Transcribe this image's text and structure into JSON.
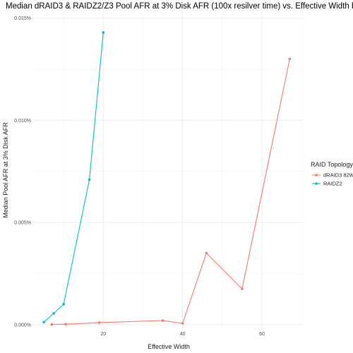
{
  "chart_data": {
    "type": "line",
    "title": "Median dRAID3 & RAIDZ2/Z3 Pool AFR at 3% Disk AFR  (100x resilver time) vs. Effective Width by RAID Topology",
    "xlabel": "Effective Width",
    "ylabel": "Median Pool AFR at 3% Disk AFR",
    "xlim": [
      2.5,
      70.5
    ],
    "ylim": [
      -0.00018,
      0.0153
    ],
    "x_ticks": [
      20,
      40,
      60
    ],
    "x_minor_ticks": [
      10,
      30,
      50,
      70
    ],
    "y_ticks": [
      0,
      0.005,
      0.01,
      0.015
    ],
    "y_tick_labels": [
      "0.000%",
      "0.005%",
      "0.010%",
      "0.015%"
    ],
    "y_minor_ticks": [
      0.0025,
      0.0075,
      0.0125
    ],
    "grid": true,
    "legend": {
      "title": "RAID Topology",
      "position": "right"
    },
    "series": [
      {
        "name": "dRAID3 82W",
        "color": "#F8766D",
        "x": [
          7,
          10.5,
          19,
          35,
          40,
          46,
          55,
          67
        ],
        "y": [
          1e-05,
          2e-05,
          0.0001,
          0.0002,
          6e-05,
          0.0035,
          0.00175,
          0.013
        ]
      },
      {
        "name": "RAIDZ2",
        "color": "#00BFC4",
        "x": [
          5,
          7.5,
          10,
          16.5,
          20
        ],
        "y": [
          0.00012,
          0.00055,
          0.001,
          0.0071,
          0.0143
        ]
      }
    ]
  }
}
